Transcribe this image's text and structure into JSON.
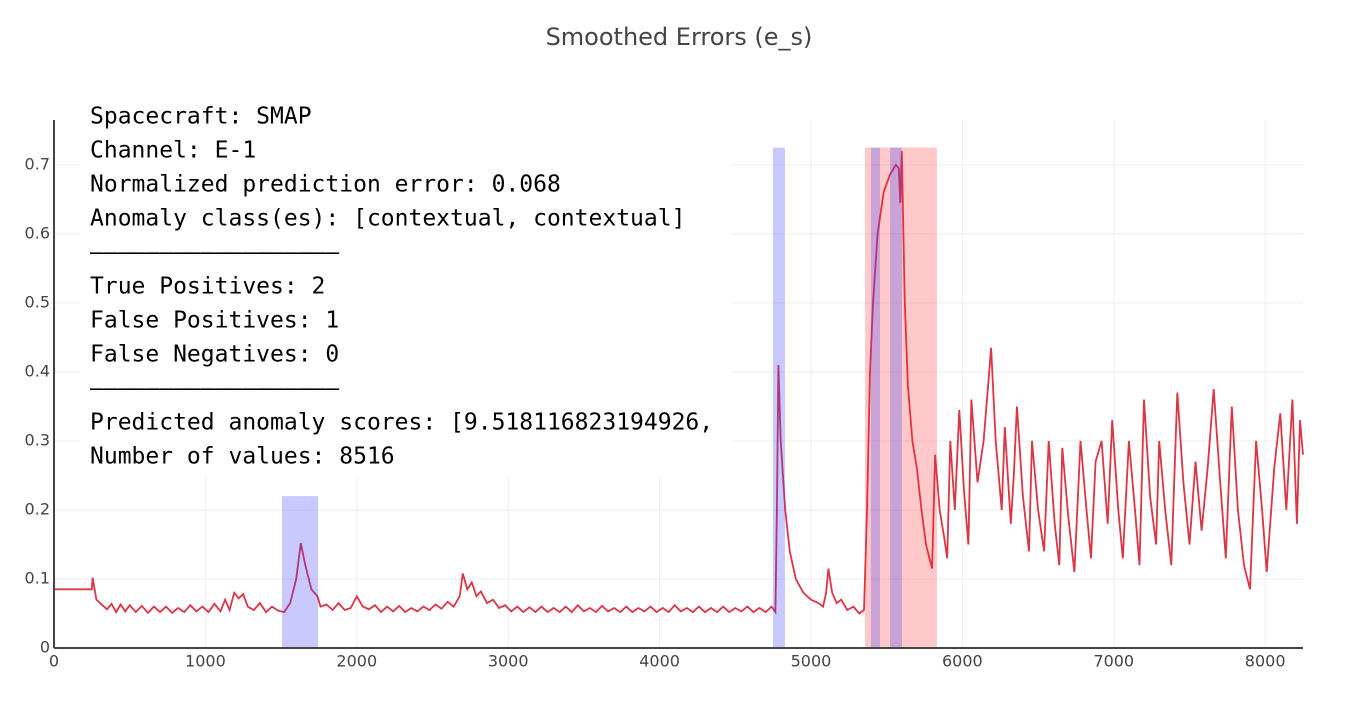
{
  "chart_data": {
    "type": "line",
    "title": "Smoothed Errors (e_s)",
    "color": "#dc3545",
    "xlim": [
      0,
      8250
    ],
    "ylim": [
      0,
      0.765
    ],
    "xticks": [
      0,
      1000,
      2000,
      3000,
      4000,
      5000,
      6000,
      7000,
      8000
    ],
    "yticks": [
      0,
      0.1,
      0.2,
      0.3,
      0.4,
      0.5,
      0.6,
      0.7
    ],
    "grid": true,
    "x": [
      0,
      250,
      255,
      280,
      320,
      350,
      380,
      410,
      440,
      470,
      500,
      540,
      580,
      620,
      660,
      700,
      740,
      780,
      820,
      860,
      900,
      940,
      980,
      1020,
      1060,
      1100,
      1130,
      1160,
      1190,
      1220,
      1250,
      1280,
      1320,
      1360,
      1400,
      1440,
      1480,
      1520,
      1560,
      1600,
      1630,
      1660,
      1700,
      1740,
      1760,
      1800,
      1840,
      1880,
      1920,
      1960,
      2000,
      2040,
      2080,
      2120,
      2160,
      2200,
      2240,
      2280,
      2320,
      2360,
      2400,
      2440,
      2480,
      2520,
      2560,
      2600,
      2640,
      2680,
      2700,
      2730,
      2760,
      2790,
      2820,
      2860,
      2900,
      2940,
      2980,
      3020,
      3060,
      3100,
      3140,
      3180,
      3220,
      3260,
      3300,
      3340,
      3380,
      3420,
      3460,
      3500,
      3540,
      3580,
      3620,
      3660,
      3700,
      3740,
      3780,
      3820,
      3860,
      3900,
      3940,
      3980,
      4020,
      4060,
      4100,
      4140,
      4180,
      4220,
      4260,
      4300,
      4340,
      4380,
      4420,
      4460,
      4500,
      4540,
      4580,
      4620,
      4660,
      4700,
      4740,
      4765,
      4775,
      4785,
      4800,
      4830,
      4860,
      4900,
      4950,
      5000,
      5050,
      5080,
      5100,
      5115,
      5140,
      5170,
      5200,
      5240,
      5280,
      5320,
      5350,
      5370,
      5390,
      5410,
      5440,
      5480,
      5520,
      5560,
      5580,
      5590,
      5600,
      5620,
      5640,
      5670,
      5700,
      5730,
      5760,
      5800,
      5820,
      5850,
      5880,
      5900,
      5920,
      5950,
      5980,
      6010,
      6040,
      6060,
      6100,
      6140,
      6170,
      6190,
      6220,
      6260,
      6280,
      6320,
      6340,
      6360,
      6400,
      6440,
      6460,
      6500,
      6540,
      6570,
      6610,
      6640,
      6660,
      6700,
      6740,
      6780,
      6820,
      6850,
      6880,
      6920,
      6960,
      6990,
      7030,
      7060,
      7100,
      7140,
      7170,
      7200,
      7240,
      7280,
      7300,
      7340,
      7380,
      7420,
      7460,
      7500,
      7540,
      7580,
      7620,
      7660,
      7700,
      7740,
      7780,
      7820,
      7860,
      7900,
      7940,
      7980,
      8010,
      8060,
      8100,
      8140,
      8180,
      8210,
      8230,
      8250
    ],
    "values": [
      0.085,
      0.085,
      0.102,
      0.07,
      0.062,
      0.056,
      0.064,
      0.052,
      0.063,
      0.053,
      0.062,
      0.052,
      0.061,
      0.051,
      0.06,
      0.052,
      0.06,
      0.051,
      0.058,
      0.052,
      0.062,
      0.053,
      0.06,
      0.052,
      0.064,
      0.053,
      0.07,
      0.055,
      0.08,
      0.072,
      0.078,
      0.06,
      0.055,
      0.065,
      0.052,
      0.06,
      0.054,
      0.052,
      0.065,
      0.1,
      0.152,
      0.12,
      0.085,
      0.075,
      0.06,
      0.063,
      0.055,
      0.065,
      0.055,
      0.058,
      0.075,
      0.06,
      0.056,
      0.062,
      0.052,
      0.06,
      0.053,
      0.061,
      0.052,
      0.058,
      0.053,
      0.06,
      0.055,
      0.063,
      0.057,
      0.067,
      0.06,
      0.075,
      0.108,
      0.085,
      0.095,
      0.075,
      0.082,
      0.065,
      0.07,
      0.058,
      0.062,
      0.053,
      0.06,
      0.052,
      0.059,
      0.052,
      0.06,
      0.052,
      0.058,
      0.052,
      0.06,
      0.052,
      0.062,
      0.053,
      0.058,
      0.052,
      0.061,
      0.053,
      0.058,
      0.052,
      0.06,
      0.052,
      0.058,
      0.053,
      0.06,
      0.052,
      0.058,
      0.052,
      0.062,
      0.053,
      0.058,
      0.052,
      0.06,
      0.052,
      0.058,
      0.052,
      0.06,
      0.052,
      0.058,
      0.053,
      0.06,
      0.052,
      0.058,
      0.052,
      0.06,
      0.052,
      0.2,
      0.41,
      0.3,
      0.2,
      0.14,
      0.1,
      0.08,
      0.07,
      0.065,
      0.06,
      0.08,
      0.115,
      0.08,
      0.065,
      0.07,
      0.055,
      0.06,
      0.05,
      0.055,
      0.2,
      0.4,
      0.5,
      0.6,
      0.66,
      0.685,
      0.7,
      0.695,
      0.645,
      0.72,
      0.5,
      0.38,
      0.3,
      0.26,
      0.2,
      0.15,
      0.115,
      0.28,
      0.2,
      0.16,
      0.13,
      0.3,
      0.2,
      0.345,
      0.23,
      0.15,
      0.36,
      0.24,
      0.3,
      0.38,
      0.435,
      0.3,
      0.2,
      0.32,
      0.18,
      0.25,
      0.35,
      0.22,
      0.14,
      0.3,
      0.2,
      0.14,
      0.3,
      0.18,
      0.12,
      0.29,
      0.19,
      0.11,
      0.3,
      0.2,
      0.13,
      0.27,
      0.3,
      0.18,
      0.33,
      0.2,
      0.13,
      0.3,
      0.2,
      0.12,
      0.36,
      0.22,
      0.15,
      0.3,
      0.2,
      0.12,
      0.37,
      0.24,
      0.15,
      0.27,
      0.17,
      0.26,
      0.375,
      0.25,
      0.13,
      0.35,
      0.2,
      0.12,
      0.085,
      0.3,
      0.2,
      0.11,
      0.26,
      0.34,
      0.2,
      0.36,
      0.18,
      0.33,
      0.28
    ],
    "regions": [
      {
        "x0": 1506,
        "x1": 1744,
        "y1": 0.22,
        "color": "rgba(60,60,255,0.28)"
      },
      {
        "x0": 4749,
        "x1": 4828,
        "y1": 0.725,
        "color": "rgba(60,60,255,0.28)"
      },
      {
        "x0": 5357,
        "x1": 5832,
        "y1": 0.725,
        "color": "rgba(255,40,40,0.25)"
      },
      {
        "x0": 5396,
        "x1": 5456,
        "y1": 0.725,
        "color": "rgba(60,60,255,0.28)"
      },
      {
        "x0": 5522,
        "x1": 5601,
        "y1": 0.725,
        "color": "rgba(60,60,255,0.28)"
      }
    ],
    "annotation_lines": [
      "Spacecraft: SMAP",
      "Channel: E-1",
      "Normalized prediction error: 0.068",
      "Anomaly class(es): [contextual, contextual]",
      "――――――――――――――――――",
      "True Positives: 2",
      "False Positives: 1",
      "False Negatives: 0",
      "――――――――――――――――――",
      "Predicted anomaly scores: [9.518116823194926,",
      "Number of values: 8516"
    ]
  }
}
